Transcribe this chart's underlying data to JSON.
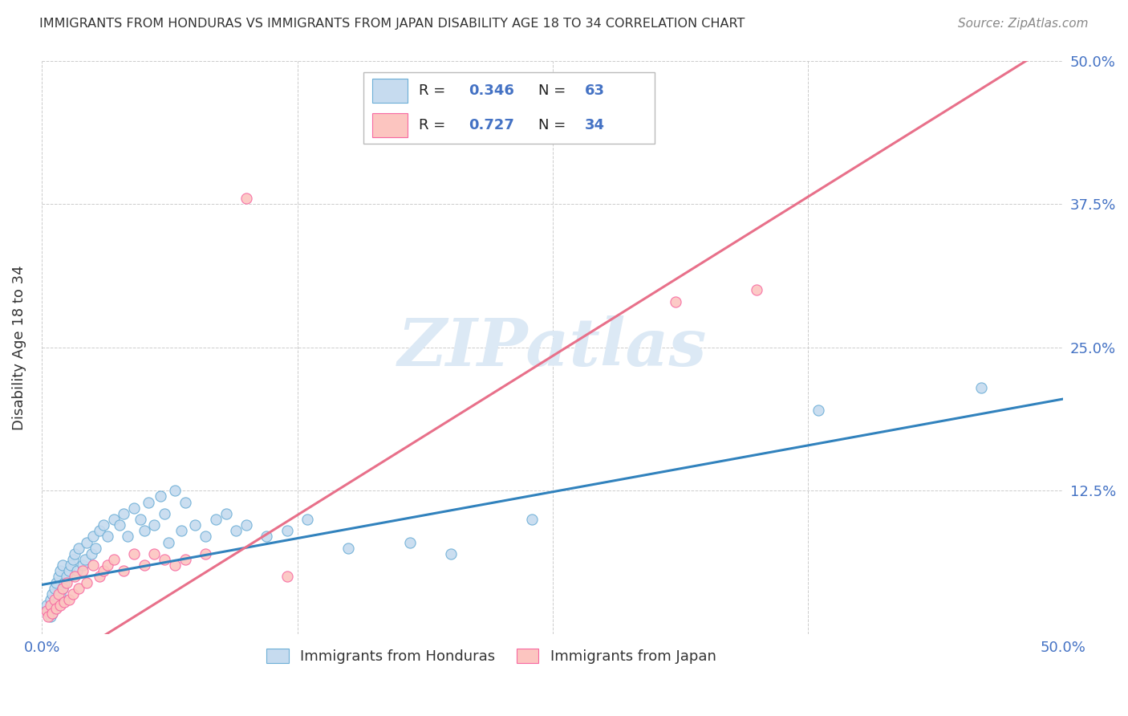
{
  "title": "IMMIGRANTS FROM HONDURAS VS IMMIGRANTS FROM JAPAN DISABILITY AGE 18 TO 34 CORRELATION CHART",
  "source": "Source: ZipAtlas.com",
  "ylabel": "Disability Age 18 to 34",
  "xlim": [
    0.0,
    0.5
  ],
  "ylim": [
    0.0,
    0.5
  ],
  "blue_fill": "#c6dbef",
  "blue_edge": "#6baed6",
  "pink_fill": "#fcc5c0",
  "pink_edge": "#f768a1",
  "trend_blue": "#3182bd",
  "trend_pink": "#e8708a",
  "R_blue": 0.346,
  "N_blue": 63,
  "R_pink": 0.727,
  "N_pink": 34,
  "legend_color": "#4472c4",
  "axis_color": "#4472c4",
  "watermark_text": "ZIPatlas",
  "watermark_color": "#dce9f5",
  "honduras_x": [
    0.002,
    0.003,
    0.004,
    0.004,
    0.005,
    0.005,
    0.006,
    0.006,
    0.007,
    0.007,
    0.008,
    0.008,
    0.009,
    0.009,
    0.01,
    0.01,
    0.011,
    0.012,
    0.013,
    0.014,
    0.015,
    0.016,
    0.017,
    0.018,
    0.02,
    0.021,
    0.022,
    0.024,
    0.025,
    0.026,
    0.028,
    0.03,
    0.032,
    0.035,
    0.038,
    0.04,
    0.042,
    0.045,
    0.048,
    0.05,
    0.052,
    0.055,
    0.058,
    0.06,
    0.062,
    0.065,
    0.068,
    0.07,
    0.075,
    0.08,
    0.085,
    0.09,
    0.095,
    0.1,
    0.11,
    0.12,
    0.13,
    0.15,
    0.18,
    0.2,
    0.24,
    0.38,
    0.46
  ],
  "honduras_y": [
    0.025,
    0.02,
    0.015,
    0.03,
    0.018,
    0.035,
    0.022,
    0.04,
    0.025,
    0.045,
    0.03,
    0.05,
    0.035,
    0.055,
    0.04,
    0.06,
    0.045,
    0.05,
    0.055,
    0.06,
    0.065,
    0.07,
    0.055,
    0.075,
    0.06,
    0.065,
    0.08,
    0.07,
    0.085,
    0.075,
    0.09,
    0.095,
    0.085,
    0.1,
    0.095,
    0.105,
    0.085,
    0.11,
    0.1,
    0.09,
    0.115,
    0.095,
    0.12,
    0.105,
    0.08,
    0.125,
    0.09,
    0.115,
    0.095,
    0.085,
    0.1,
    0.105,
    0.09,
    0.095,
    0.085,
    0.09,
    0.1,
    0.075,
    0.08,
    0.07,
    0.1,
    0.195,
    0.215
  ],
  "japan_x": [
    0.002,
    0.003,
    0.004,
    0.005,
    0.006,
    0.007,
    0.008,
    0.009,
    0.01,
    0.011,
    0.012,
    0.013,
    0.015,
    0.016,
    0.018,
    0.02,
    0.022,
    0.025,
    0.028,
    0.03,
    0.032,
    0.035,
    0.04,
    0.045,
    0.05,
    0.055,
    0.06,
    0.065,
    0.07,
    0.08,
    0.1,
    0.12,
    0.31,
    0.35
  ],
  "japan_y": [
    0.02,
    0.015,
    0.025,
    0.018,
    0.03,
    0.022,
    0.035,
    0.025,
    0.04,
    0.028,
    0.045,
    0.03,
    0.035,
    0.05,
    0.04,
    0.055,
    0.045,
    0.06,
    0.05,
    0.055,
    0.06,
    0.065,
    0.055,
    0.07,
    0.06,
    0.07,
    0.065,
    0.06,
    0.065,
    0.07,
    0.38,
    0.05,
    0.29,
    0.3
  ]
}
